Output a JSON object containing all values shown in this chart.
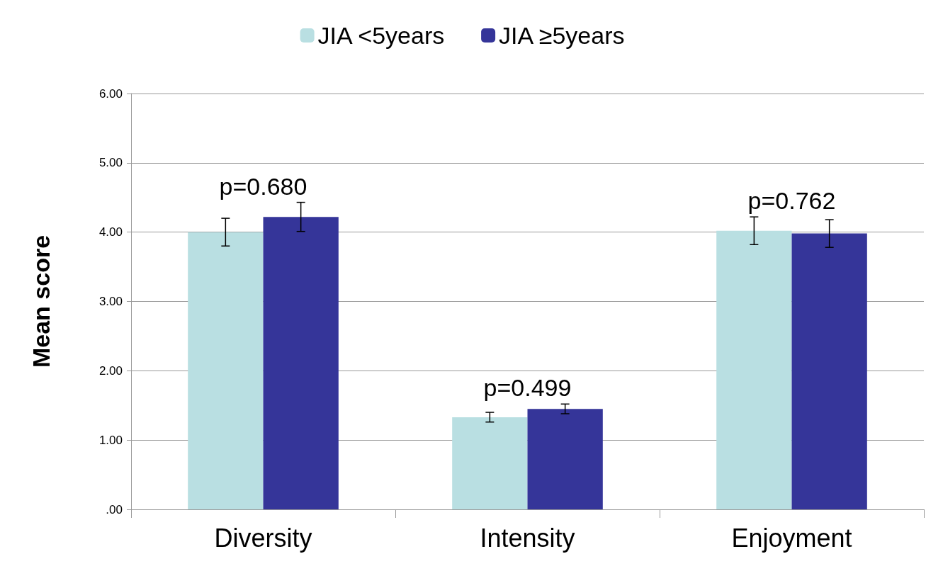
{
  "chart_data": {
    "type": "bar",
    "ylabel": "Mean score",
    "categories": [
      "Diversity",
      "Intensity",
      "Enjoyment"
    ],
    "series": [
      {
        "name": "JIA <5years",
        "color": "#b9dfe2",
        "values": [
          4.0,
          1.33,
          4.02
        ],
        "errors": [
          0.2,
          0.07,
          0.2
        ]
      },
      {
        "name": "JIA ≥5years",
        "color": "#353599",
        "values": [
          4.22,
          1.45,
          3.98
        ],
        "errors": [
          0.21,
          0.07,
          0.2
        ]
      }
    ],
    "ylim": [
      0,
      6
    ],
    "yticks": [
      {
        "value": 0,
        "label": ".00"
      },
      {
        "value": 1,
        "label": "1.00"
      },
      {
        "value": 2,
        "label": "2.00"
      },
      {
        "value": 3,
        "label": "3.00"
      },
      {
        "value": 4,
        "label": "4.00"
      },
      {
        "value": 5,
        "label": "5.00"
      },
      {
        "value": 6,
        "label": "6.00"
      }
    ],
    "grid": "y",
    "legend": "top",
    "annotations": [
      "p=0.680",
      "p=0.499",
      "p=0.762"
    ]
  }
}
